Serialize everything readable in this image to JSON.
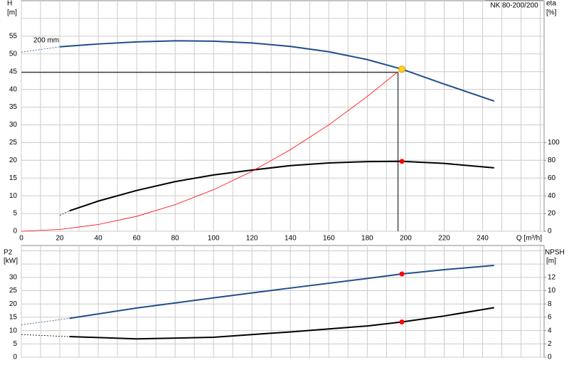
{
  "chart_data": [
    {
      "type": "line",
      "title": "NK 80-200/200",
      "xlabel": "Q [m³/h]",
      "ylabel": "H",
      "yunit": "[m]",
      "y2label": "eta",
      "y2unit": "[%]",
      "annotations": [
        "200 mm"
      ],
      "xlim": [
        0,
        272
      ],
      "xticks": [
        0,
        20,
        40,
        60,
        80,
        100,
        120,
        140,
        160,
        180,
        200,
        220,
        240
      ],
      "minor_xticks": [
        10,
        30,
        50,
        70,
        90,
        110,
        130,
        150,
        170,
        190,
        210,
        230,
        250,
        260,
        270
      ],
      "ylim": [
        0,
        65
      ],
      "yticks": [
        0,
        5,
        10,
        15,
        20,
        25,
        30,
        35,
        40,
        45,
        50,
        55
      ],
      "minor_yticks": [
        60
      ],
      "y2lim": [
        0,
        260
      ],
      "y2ticks": [
        0,
        20,
        40,
        60,
        80,
        100
      ],
      "grid": true,
      "series": [
        {
          "name": "200 mm",
          "color": "#1f4e8c",
          "width": 2,
          "dashed_until": 20,
          "x": [
            0,
            20,
            40,
            60,
            80,
            100,
            120,
            140,
            160,
            180,
            198,
            220,
            246
          ],
          "values": [
            50.5,
            52,
            52.8,
            53.4,
            53.7,
            53.6,
            53.1,
            52.1,
            50.6,
            48.4,
            45.7,
            41.5,
            36.7
          ]
        },
        {
          "color": "#000000",
          "width": 2,
          "axis": "y2",
          "dashed_until": 25,
          "x": [
            20,
            25,
            40,
            60,
            80,
            100,
            120,
            140,
            160,
            180,
            198,
            220,
            246
          ],
          "values": [
            18,
            23,
            34,
            46,
            56,
            63.5,
            69,
            74,
            77,
            78.5,
            78.8,
            76.5,
            71.5
          ]
        },
        {
          "color": "#ff0000",
          "width": 0.8,
          "x": [
            0,
            20,
            40,
            60,
            80,
            100,
            120,
            140,
            160,
            180,
            196
          ],
          "values": [
            0,
            0.5,
            1.9,
            4.2,
            7.5,
            11.7,
            16.9,
            23,
            30,
            38,
            45
          ]
        }
      ],
      "duty_point": {
        "x": 196,
        "y": 44.8
      },
      "markers": [
        {
          "x": 198,
          "y": 45.7,
          "color": "#ffd21f"
        },
        {
          "x": 198,
          "y": 78.8,
          "axis": "y2",
          "color": "#ff0000"
        }
      ]
    },
    {
      "type": "line",
      "ylabel": "P2",
      "yunit": "[kW]",
      "y2label": "NPSH",
      "y2unit": "[m]",
      "xlim": [
        0,
        272
      ],
      "xticks": [],
      "minor_xticks": [
        0,
        10,
        20,
        30,
        40,
        50,
        60,
        70,
        80,
        90,
        100,
        110,
        120,
        130,
        140,
        150,
        160,
        170,
        180,
        190,
        200,
        210,
        220,
        230,
        240,
        250,
        260,
        270
      ],
      "ylim": [
        0,
        42
      ],
      "yticks": [
        0,
        5,
        10,
        15,
        20,
        25,
        30
      ],
      "minor_yticks": [
        35,
        40
      ],
      "y2lim": [
        0,
        16.8
      ],
      "y2ticks": [
        0,
        2,
        4,
        6,
        8,
        10,
        12
      ],
      "grid": true,
      "series": [
        {
          "color": "#1f4e8c",
          "width": 2,
          "dashed_until": 25,
          "x": [
            0,
            25,
            60,
            100,
            140,
            180,
            198,
            220,
            246
          ],
          "values": [
            12.2,
            14.6,
            18.5,
            22.3,
            26,
            29.6,
            31.3,
            32.9,
            34.5
          ]
        },
        {
          "color": "#000000",
          "width": 2,
          "axis": "y2",
          "dashed_until": 25,
          "x": [
            0,
            25,
            60,
            100,
            140,
            180,
            198,
            220,
            246
          ],
          "values": [
            3.4,
            3.1,
            2.75,
            3.0,
            3.8,
            4.7,
            5.3,
            6.2,
            7.45
          ]
        }
      ],
      "markers": [
        {
          "x": 198,
          "y": 31.3,
          "color": "#ff0000"
        },
        {
          "x": 198,
          "y": 5.3,
          "axis": "y2",
          "color": "#ff0000"
        }
      ]
    }
  ]
}
